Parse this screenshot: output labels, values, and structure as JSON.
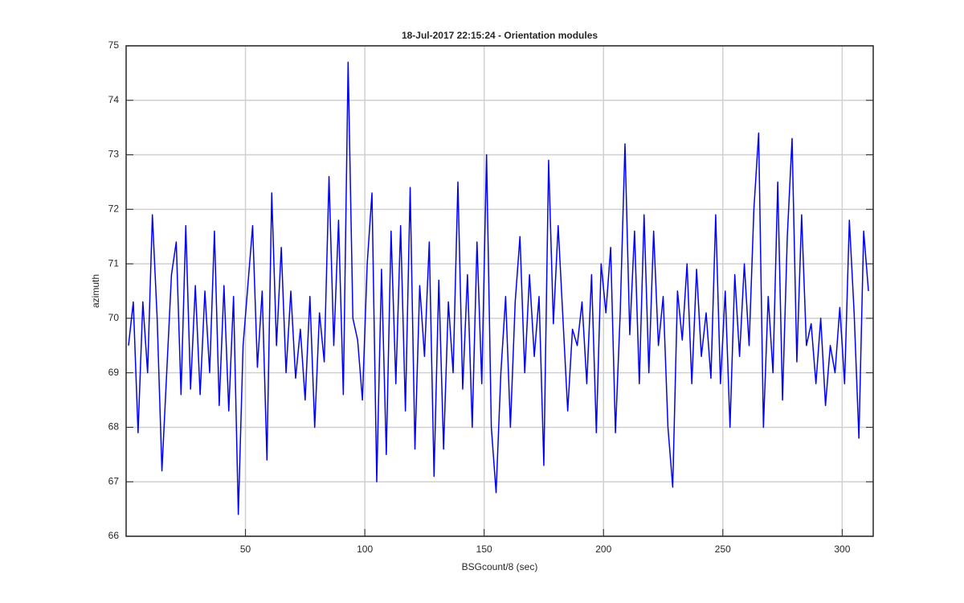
{
  "chart_data": {
    "type": "line",
    "title": "18-Jul-2017 22:15:24 - Orientation modules",
    "xlabel": "BSGcount/8 (sec)",
    "ylabel": "azimuth",
    "xlim": [
      0,
      313
    ],
    "ylim": [
      66,
      75
    ],
    "xticks": [
      50,
      100,
      150,
      200,
      250,
      300
    ],
    "yticks": [
      66,
      67,
      68,
      69,
      70,
      71,
      72,
      73,
      74,
      75
    ],
    "grid": true,
    "x": [
      1,
      3,
      5,
      7,
      9,
      11,
      13,
      15,
      17,
      19,
      21,
      23,
      25,
      27,
      29,
      31,
      33,
      35,
      37,
      39,
      41,
      43,
      45,
      47,
      49,
      51,
      53,
      55,
      57,
      59,
      61,
      63,
      65,
      67,
      69,
      71,
      73,
      75,
      77,
      79,
      81,
      83,
      85,
      87,
      89,
      91,
      93,
      95,
      97,
      99,
      101,
      103,
      105,
      107,
      109,
      111,
      113,
      115,
      117,
      119,
      121,
      123,
      125,
      127,
      129,
      131,
      133,
      135,
      137,
      139,
      141,
      143,
      145,
      147,
      149,
      151,
      153,
      155,
      157,
      159,
      161,
      163,
      165,
      167,
      169,
      171,
      173,
      175,
      177,
      179,
      181,
      183,
      185,
      187,
      189,
      191,
      193,
      195,
      197,
      199,
      201,
      203,
      205,
      207,
      209,
      211,
      213,
      215,
      217,
      219,
      221,
      223,
      225,
      227,
      229,
      231,
      233,
      235,
      237,
      239,
      241,
      243,
      245,
      247,
      249,
      251,
      253,
      255,
      257,
      259,
      261,
      263,
      265,
      267,
      269,
      271,
      273,
      275,
      277,
      279,
      281,
      283,
      285,
      287,
      289,
      291,
      293,
      295,
      297,
      299,
      301,
      303,
      305,
      307,
      309,
      311
    ],
    "series": [
      {
        "name": "azimuth",
        "color": "#0000ff",
        "values": [
          69.5,
          70.3,
          67.9,
          70.3,
          69.0,
          71.9,
          70.0,
          67.2,
          69.0,
          70.8,
          71.4,
          68.6,
          71.7,
          68.7,
          70.6,
          68.6,
          70.5,
          69.0,
          71.6,
          68.4,
          70.6,
          68.3,
          70.4,
          66.4,
          69.5,
          70.6,
          71.7,
          69.1,
          70.5,
          67.4,
          72.3,
          69.5,
          71.3,
          69.0,
          70.5,
          68.9,
          69.8,
          68.5,
          70.4,
          68.0,
          70.1,
          69.2,
          72.6,
          69.5,
          71.8,
          68.6,
          74.7,
          70.0,
          69.6,
          68.5,
          71.0,
          72.3,
          67.0,
          70.9,
          67.5,
          71.6,
          68.8,
          71.7,
          68.3,
          72.4,
          67.6,
          70.6,
          69.3,
          71.4,
          67.1,
          70.7,
          67.6,
          70.3,
          69.0,
          72.5,
          68.7,
          70.8,
          68.0,
          71.4,
          68.8,
          73.0,
          68.0,
          66.8,
          69.0,
          70.4,
          68.0,
          70.3,
          71.5,
          69.0,
          70.8,
          69.3,
          70.4,
          67.3,
          72.9,
          69.9,
          71.7,
          70.0,
          68.3,
          69.8,
          69.5,
          70.3,
          68.8,
          70.8,
          67.9,
          71.0,
          70.1,
          71.3,
          67.9,
          70.1,
          73.2,
          69.7,
          71.6,
          68.8,
          71.9,
          69.0,
          71.6,
          69.5,
          70.4,
          68.0,
          66.9,
          70.5,
          69.6,
          71.0,
          68.8,
          70.9,
          69.3,
          70.1,
          68.9,
          71.9,
          68.8,
          70.5,
          68.0,
          70.8,
          69.3,
          71.0,
          69.5,
          72.0,
          73.4,
          68.0,
          70.4,
          69.0,
          72.5,
          68.5,
          71.5,
          73.3,
          69.2,
          71.9,
          69.5,
          69.9,
          68.8,
          70.0,
          68.4,
          69.5,
          69.0,
          70.2,
          68.8,
          71.8,
          70.1,
          67.8,
          71.6,
          70.5
        ]
      }
    ]
  }
}
